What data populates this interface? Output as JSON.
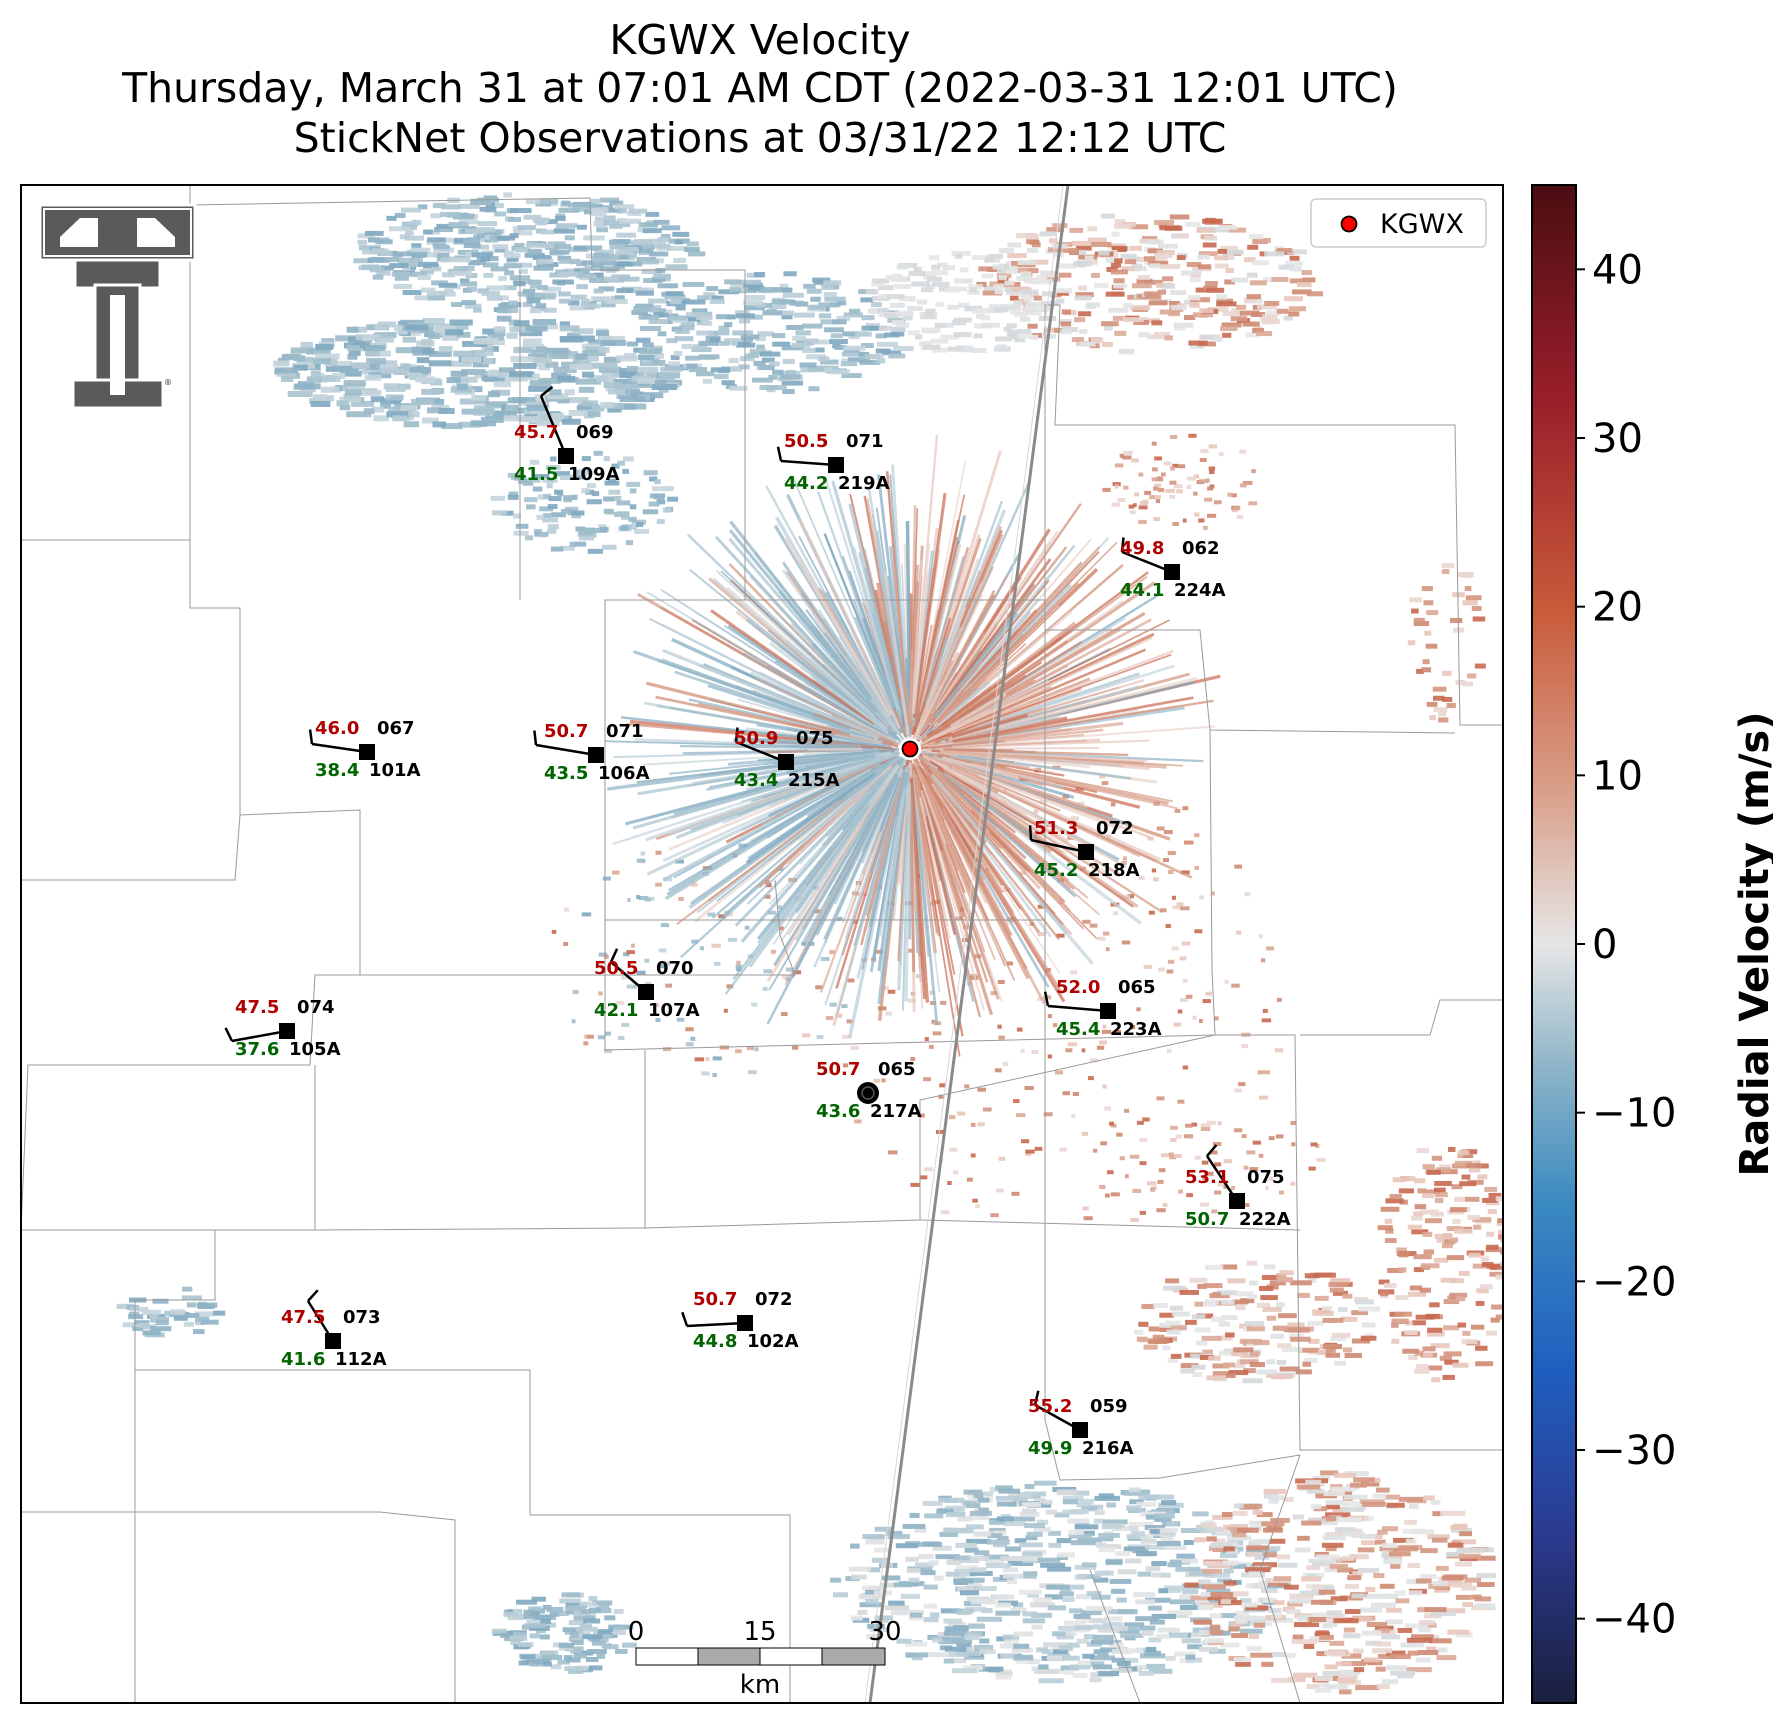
{
  "title": {
    "line1": "KGWX Velocity",
    "line2": "Thursday, March 31 at 07:01 AM CDT (2022-03-31 12:01 UTC)",
    "line3": "StickNet Observations at 03/31/22 12:12 UTC"
  },
  "legend": {
    "label": "KGWX",
    "marker_color": "#ff0000"
  },
  "colorbar": {
    "label": "Radial Velocity (m/s)",
    "min": -45,
    "max": 45,
    "ticks": [
      "40",
      "30",
      "20",
      "10",
      "0",
      "−10",
      "−20",
      "−30",
      "−40"
    ],
    "tick_values": [
      40,
      30,
      20,
      10,
      0,
      -10,
      -20,
      -30,
      -40
    ],
    "colors": [
      "#1a1f3d",
      "#2b3a8f",
      "#1f5fc0",
      "#3b8ac0",
      "#8fb5c8",
      "#e6e6e6",
      "#d9a08a",
      "#c85a3a",
      "#9a1e2a",
      "#4a0e12"
    ]
  },
  "scalebar": {
    "labels": [
      "0",
      "15",
      "30"
    ],
    "unit": "km"
  },
  "logo": {
    "name": "Texas Tech double-T logo"
  },
  "stations": [
    {
      "id": "109A",
      "temp": "45.7",
      "dew": "41.5",
      "dir": "069"
    },
    {
      "id": "219A",
      "temp": "50.5",
      "dew": "44.2",
      "dir": "071"
    },
    {
      "id": "224A",
      "temp": "49.8",
      "dew": "44.1",
      "dir": "062"
    },
    {
      "id": "101A",
      "temp": "46.0",
      "dew": "38.4",
      "dir": "067"
    },
    {
      "id": "106A",
      "temp": "50.7",
      "dew": "43.5",
      "dir": "071"
    },
    {
      "id": "215A",
      "temp": "50.9",
      "dew": "43.4",
      "dir": "075"
    },
    {
      "id": "218A",
      "temp": "51.3",
      "dew": "45.2",
      "dir": "072"
    },
    {
      "id": "107A",
      "temp": "50.5",
      "dew": "42.1",
      "dir": "070"
    },
    {
      "id": "223A",
      "temp": "52.0",
      "dew": "45.4",
      "dir": "065"
    },
    {
      "id": "105A",
      "temp": "47.5",
      "dew": "37.6",
      "dir": "074"
    },
    {
      "id": "217A",
      "temp": "50.7",
      "dew": "43.6",
      "dir": "065"
    },
    {
      "id": "222A",
      "temp": "53.1",
      "dew": "50.7",
      "dir": "075"
    },
    {
      "id": "112A",
      "temp": "47.5",
      "dew": "41.6",
      "dir": "073"
    },
    {
      "id": "102A",
      "temp": "50.7",
      "dew": "44.8",
      "dir": "072"
    },
    {
      "id": "216A",
      "temp": "55.2",
      "dew": "49.9",
      "dir": "059"
    }
  ]
}
